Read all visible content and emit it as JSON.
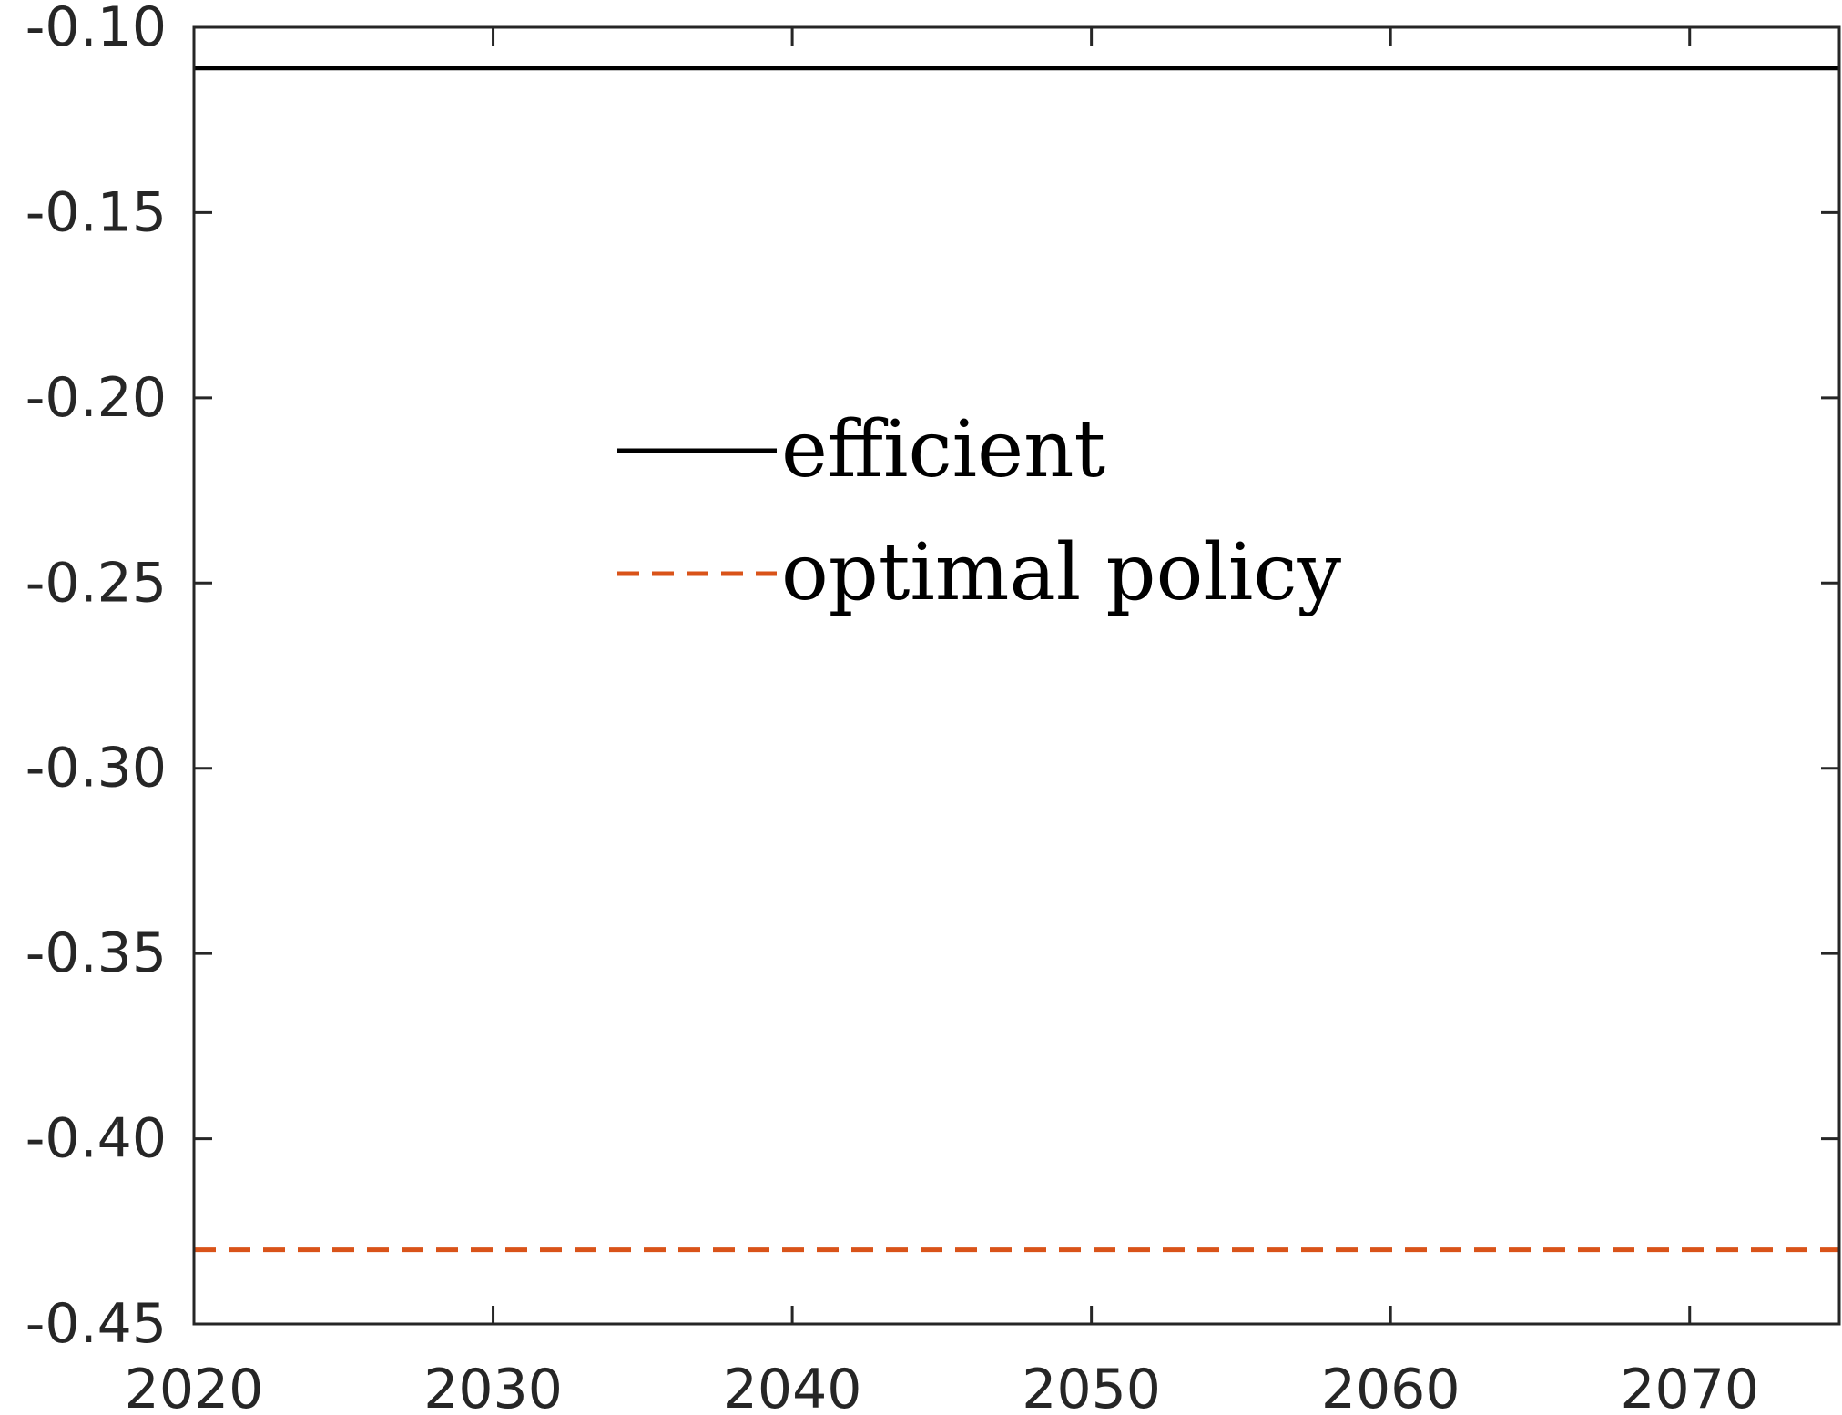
{
  "chart_data": {
    "type": "line",
    "title": "",
    "xlabel": "",
    "ylabel": "",
    "xlim": [
      2020,
      2075
    ],
    "ylim": [
      -0.45,
      -0.1
    ],
    "x_ticks": [
      2020,
      2030,
      2040,
      2050,
      2060,
      2070
    ],
    "x_tick_labels": [
      "2020",
      "2030",
      "2040",
      "2050",
      "2060",
      "2070"
    ],
    "y_ticks": [
      -0.45,
      -0.4,
      -0.35,
      -0.3,
      -0.25,
      -0.2,
      -0.15,
      -0.1
    ],
    "y_tick_labels": [
      "-0.45",
      "-0.40",
      "-0.35",
      "-0.30",
      "-0.25",
      "-0.20",
      "-0.15",
      "-0.10"
    ],
    "grid": false,
    "legend_position": "upper-center",
    "series": [
      {
        "name": "efficient",
        "x": [
          2020,
          2075
        ],
        "y": [
          -0.111,
          -0.111
        ],
        "color": "#000000",
        "line_style": "solid"
      },
      {
        "name": "optimal policy",
        "x": [
          2020,
          2075
        ],
        "y": [
          -0.43,
          -0.43
        ],
        "color": "#D95319",
        "line_style": "dashed"
      }
    ]
  }
}
